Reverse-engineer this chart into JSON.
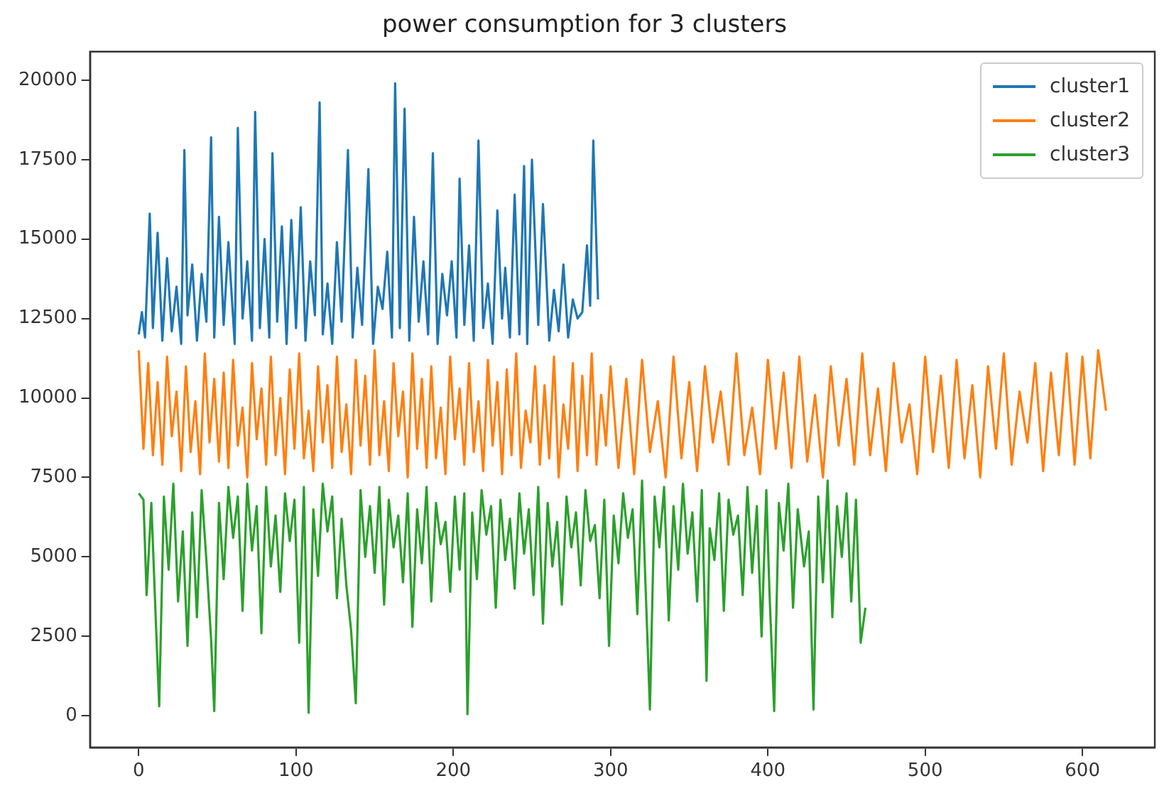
{
  "chart_data": {
    "type": "line",
    "title": "power consumption for 3 clusters",
    "xlim": [
      -31,
      646
    ],
    "ylim": [
      -995,
      20895
    ],
    "xticks": [
      0,
      100,
      200,
      300,
      400,
      500,
      600
    ],
    "yticks": [
      0,
      2500,
      5000,
      7500,
      10000,
      12500,
      15000,
      17500,
      20000
    ],
    "grid": false,
    "legend": "top right",
    "marker": "none",
    "line_style": "solid",
    "series": [
      {
        "name": "cluster1",
        "color": "#1f77b4",
        "x": [
          0,
          2,
          4,
          7,
          9,
          12,
          15,
          18,
          21,
          24,
          27,
          29,
          31,
          34,
          37,
          40,
          43,
          46,
          48,
          51,
          54,
          57,
          61,
          63,
          66,
          69,
          72,
          74,
          77,
          80,
          83,
          85,
          88,
          91,
          94,
          97,
          100,
          103,
          106,
          109,
          112,
          115,
          117,
          120,
          123,
          126,
          129,
          133,
          136,
          139,
          142,
          146,
          149,
          152,
          155,
          158,
          161,
          163,
          166,
          169,
          172,
          175,
          178,
          181,
          184,
          187,
          190,
          193,
          196,
          199,
          202,
          204,
          207,
          210,
          213,
          216,
          219,
          222,
          225,
          228,
          231,
          233,
          236,
          239,
          242,
          245,
          247,
          250,
          254,
          257,
          261,
          264,
          267,
          270,
          273,
          276,
          279,
          282,
          285,
          287,
          289,
          292
        ],
        "values": [
          12000,
          12700,
          11900,
          15800,
          12200,
          15200,
          11800,
          14400,
          12100,
          13500,
          11700,
          17800,
          12600,
          14200,
          11800,
          13900,
          12400,
          18200,
          11900,
          15700,
          12300,
          14900,
          11700,
          18500,
          12500,
          14300,
          11800,
          19000,
          12200,
          15000,
          11900,
          17700,
          12400,
          15400,
          11700,
          15600,
          12200,
          16000,
          11800,
          14300,
          12600,
          19300,
          12000,
          13600,
          11700,
          14900,
          12400,
          17800,
          11900,
          14100,
          12300,
          17200,
          11700,
          13500,
          12800,
          14600,
          11900,
          19900,
          12200,
          19100,
          11800,
          15700,
          12400,
          14300,
          12000,
          17700,
          11700,
          13900,
          12600,
          14300,
          11900,
          16900,
          12300,
          14800,
          11800,
          18100,
          12200,
          13600,
          11700,
          15900,
          12500,
          14100,
          11900,
          16400,
          12000,
          17300,
          11700,
          17500,
          12300,
          16100,
          11800,
          13400,
          12100,
          14200,
          11900,
          13100,
          12500,
          12700,
          14800,
          12900,
          18100,
          13100
        ]
      },
      {
        "name": "cluster2",
        "color": "#ff7f0e",
        "x": [
          0,
          3,
          6,
          9,
          12,
          15,
          18,
          21,
          24,
          27,
          30,
          33,
          36,
          39,
          42,
          45,
          48,
          51,
          54,
          57,
          60,
          63,
          66,
          69,
          72,
          75,
          78,
          81,
          84,
          87,
          90,
          93,
          96,
          99,
          102,
          105,
          108,
          111,
          114,
          117,
          120,
          123,
          126,
          129,
          132,
          135,
          138,
          141,
          144,
          147,
          150,
          153,
          156,
          159,
          162,
          165,
          168,
          171,
          174,
          177,
          180,
          183,
          186,
          189,
          192,
          195,
          198,
          201,
          204,
          207,
          210,
          213,
          216,
          219,
          222,
          225,
          228,
          231,
          234,
          237,
          240,
          243,
          246,
          249,
          252,
          255,
          258,
          261,
          264,
          267,
          270,
          273,
          276,
          279,
          282,
          285,
          288,
          291,
          294,
          297,
          300,
          305,
          310,
          315,
          320,
          325,
          330,
          335,
          340,
          345,
          350,
          355,
          360,
          365,
          370,
          375,
          380,
          385,
          390,
          395,
          400,
          405,
          410,
          415,
          420,
          425,
          430,
          435,
          440,
          445,
          450,
          455,
          460,
          465,
          470,
          475,
          480,
          485,
          490,
          495,
          500,
          505,
          510,
          515,
          520,
          525,
          530,
          535,
          540,
          545,
          550,
          555,
          560,
          565,
          570,
          575,
          580,
          585,
          590,
          595,
          600,
          605,
          610,
          615
        ],
        "values": [
          11500,
          8400,
          11100,
          8200,
          10500,
          7900,
          11300,
          8800,
          10200,
          7700,
          11000,
          8300,
          9900,
          7600,
          11400,
          8600,
          10600,
          8000,
          10800,
          7800,
          11200,
          8500,
          9700,
          7500,
          11100,
          8700,
          10300,
          7900,
          11300,
          8200,
          10000,
          7600,
          10900,
          8400,
          11400,
          8100,
          9600,
          7700,
          11000,
          8600,
          10400,
          7800,
          11300,
          8300,
          9800,
          7600,
          11200,
          8500,
          10700,
          7900,
          11500,
          8200,
          9900,
          7700,
          11100,
          8800,
          10200,
          7500,
          11400,
          8400,
          10600,
          7800,
          11000,
          8100,
          9700,
          7600,
          11300,
          8700,
          10300,
          7900,
          11100,
          8300,
          9900,
          7700,
          11200,
          8500,
          10500,
          7600,
          10900,
          8200,
          11400,
          7800,
          9600,
          8600,
          11000,
          7900,
          10400,
          8100,
          11300,
          7500,
          9800,
          8400,
          11100,
          7700,
          10700,
          8200,
          11400,
          7900,
          10100,
          8500,
          11000,
          7800,
          10600,
          7600,
          11200,
          8300,
          9900,
          7500,
          11300,
          8100,
          10500,
          7700,
          11000,
          8600,
          10200,
          7900,
          11400,
          8200,
          9700,
          7600,
          11200,
          8400,
          10800,
          7800,
          11300,
          8000,
          10100,
          7500,
          11000,
          8500,
          10600,
          7900,
          11400,
          8200,
          10300,
          7700,
          11100,
          8600,
          9800,
          7600,
          11300,
          8300,
          10700,
          7800,
          11200,
          8100,
          10400,
          7500,
          11000,
          8400,
          11400,
          7900,
          10200,
          8600,
          11100,
          7700,
          10800,
          8200,
          11400,
          7900,
          11300,
          8100,
          11500,
          9600
        ]
      },
      {
        "name": "cluster3",
        "color": "#2ca02c",
        "x": [
          0,
          3,
          5,
          8,
          11,
          13,
          16,
          19,
          22,
          25,
          28,
          31,
          34,
          37,
          40,
          43,
          46,
          48,
          51,
          54,
          57,
          60,
          63,
          66,
          69,
          72,
          75,
          78,
          81,
          84,
          87,
          90,
          93,
          96,
          99,
          102,
          105,
          108,
          111,
          114,
          117,
          120,
          123,
          126,
          129,
          132,
          135,
          138,
          141,
          144,
          147,
          150,
          153,
          156,
          159,
          162,
          165,
          168,
          171,
          174,
          177,
          180,
          183,
          186,
          189,
          192,
          195,
          198,
          201,
          204,
          207,
          209,
          212,
          215,
          218,
          221,
          224,
          227,
          230,
          233,
          236,
          239,
          242,
          245,
          248,
          251,
          254,
          257,
          260,
          263,
          266,
          269,
          272,
          275,
          278,
          281,
          284,
          287,
          290,
          293,
          296,
          299,
          302,
          305,
          308,
          311,
          314,
          317,
          320,
          322,
          325,
          328,
          331,
          334,
          337,
          340,
          343,
          346,
          349,
          352,
          355,
          358,
          361,
          363,
          366,
          369,
          372,
          375,
          378,
          381,
          384,
          387,
          390,
          393,
          396,
          399,
          401,
          404,
          407,
          410,
          413,
          416,
          419,
          423,
          426,
          429,
          432,
          435,
          438,
          441,
          444,
          447,
          450,
          453,
          456,
          459,
          462
        ],
        "values": [
          7000,
          6800,
          3800,
          6700,
          2800,
          300,
          6900,
          4600,
          7300,
          3600,
          5800,
          2200,
          6400,
          3100,
          7100,
          4900,
          2400,
          150,
          6700,
          4300,
          7200,
          5600,
          6900,
          3300,
          7300,
          5200,
          6600,
          2600,
          7200,
          4700,
          6300,
          3900,
          7000,
          5500,
          6800,
          2300,
          7200,
          100,
          6500,
          4400,
          7300,
          5800,
          6900,
          3700,
          6200,
          4100,
          2700,
          400,
          7100,
          5000,
          6600,
          4500,
          7200,
          3500,
          6800,
          5300,
          6300,
          4200,
          7000,
          2800,
          6500,
          4800,
          7200,
          3600,
          6700,
          5400,
          6100,
          3900,
          6900,
          4600,
          7000,
          50,
          6400,
          4300,
          7100,
          5700,
          6600,
          3400,
          6800,
          4900,
          6200,
          4000,
          7000,
          5100,
          6500,
          3800,
          7200,
          2900,
          6700,
          4700,
          6100,
          3500,
          6900,
          5300,
          6400,
          4100,
          7100,
          5500,
          6000,
          3700,
          6800,
          2200,
          6300,
          4800,
          7000,
          5600,
          6500,
          3200,
          7400,
          4400,
          200,
          6900,
          5300,
          7200,
          3000,
          6600,
          4600,
          7300,
          5100,
          6400,
          3600,
          7100,
          1100,
          5900,
          4900,
          7000,
          3300,
          6800,
          5700,
          6300,
          3800,
          7200,
          4500,
          6600,
          2500,
          7100,
          3900,
          150,
          6700,
          5200,
          7300,
          3400,
          6500,
          4700,
          5800,
          200,
          6900,
          4200,
          7400,
          3100,
          6600,
          5000,
          7000,
          3600,
          6800,
          2300,
          3400
        ]
      }
    ]
  }
}
